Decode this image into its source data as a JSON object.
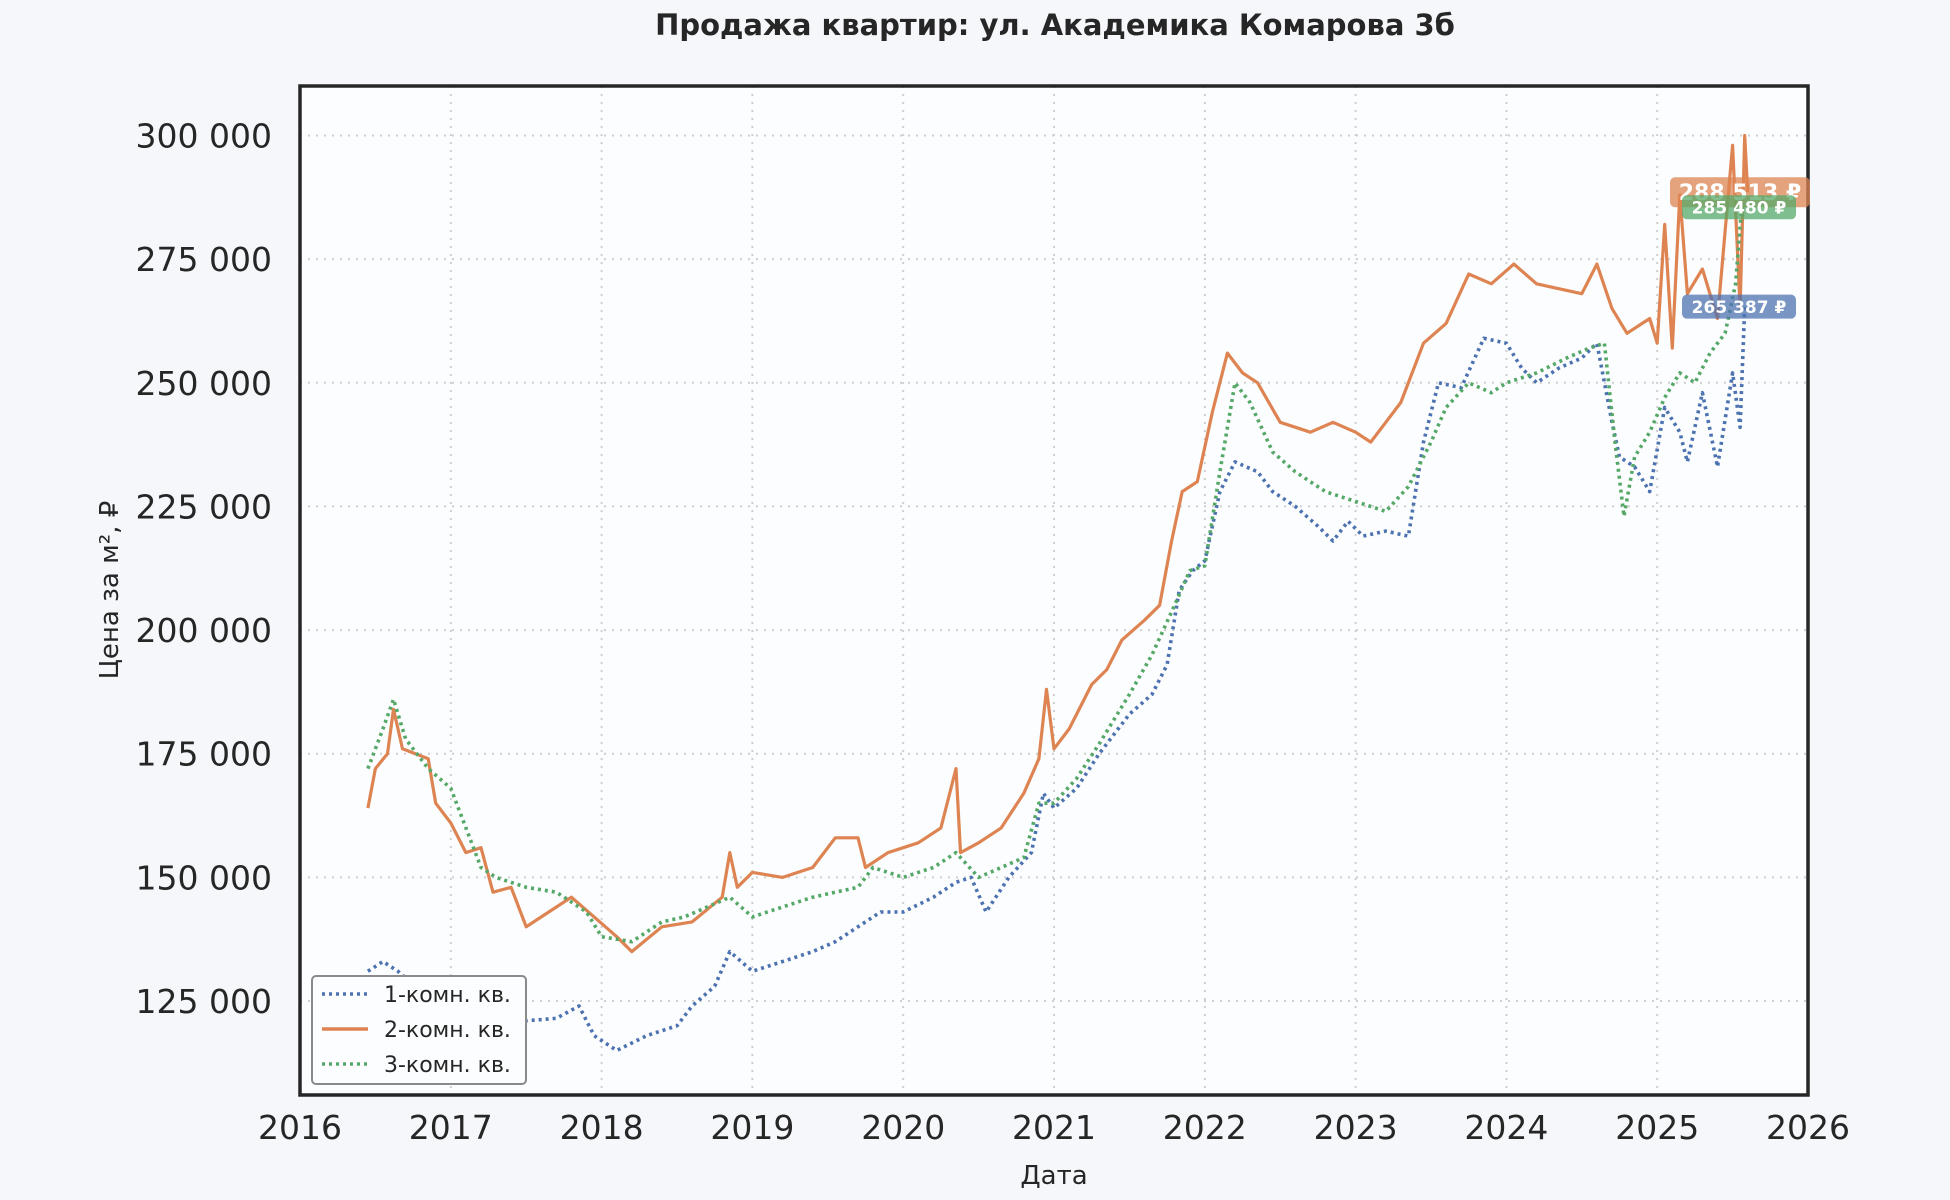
{
  "chart_data": {
    "type": "line",
    "title": "Продажа квартир: ул. Академика Комарова 3б",
    "xlabel": "Дата",
    "ylabel": "Цена за м², ₽",
    "xlim": [
      2016,
      2026
    ],
    "ylim": [
      106000,
      310000
    ],
    "x_ticks": [
      "2016",
      "2017",
      "2018",
      "2019",
      "2020",
      "2021",
      "2022",
      "2023",
      "2024",
      "2025",
      "2026"
    ],
    "y_ticks": [
      "125 000",
      "150 000",
      "175 000",
      "200 000",
      "225 000",
      "250 000",
      "275 000",
      "300 000"
    ],
    "grid": true,
    "legend_position": "lower-left",
    "series": [
      {
        "name": "1-комн. кв.",
        "color": "#4c72b0",
        "style": "dotted",
        "last_value_label": "265 387 ₽",
        "points": [
          [
            2016.45,
            131000
          ],
          [
            2016.55,
            133000
          ],
          [
            2016.65,
            131000
          ],
          [
            2016.8,
            127000
          ],
          [
            2017.0,
            124000
          ],
          [
            2017.3,
            122000
          ],
          [
            2017.5,
            121000
          ],
          [
            2017.7,
            121500
          ],
          [
            2017.85,
            124000
          ],
          [
            2017.95,
            118000
          ],
          [
            2018.1,
            115000
          ],
          [
            2018.3,
            118000
          ],
          [
            2018.5,
            120000
          ],
          [
            2018.6,
            124000
          ],
          [
            2018.75,
            128000
          ],
          [
            2018.85,
            135000
          ],
          [
            2019.0,
            131000
          ],
          [
            2019.2,
            133000
          ],
          [
            2019.4,
            135000
          ],
          [
            2019.55,
            137000
          ],
          [
            2019.7,
            140000
          ],
          [
            2019.85,
            143000
          ],
          [
            2020.0,
            143000
          ],
          [
            2020.2,
            146000
          ],
          [
            2020.35,
            149000
          ],
          [
            2020.45,
            150000
          ],
          [
            2020.55,
            143000
          ],
          [
            2020.7,
            150000
          ],
          [
            2020.85,
            155000
          ],
          [
            2020.93,
            167000
          ],
          [
            2021.0,
            164000
          ],
          [
            2021.15,
            168000
          ],
          [
            2021.3,
            175000
          ],
          [
            2021.5,
            183000
          ],
          [
            2021.65,
            187000
          ],
          [
            2021.75,
            193000
          ],
          [
            2021.83,
            208000
          ],
          [
            2021.92,
            212000
          ],
          [
            2022.0,
            214000
          ],
          [
            2022.1,
            228000
          ],
          [
            2022.2,
            234000
          ],
          [
            2022.35,
            232000
          ],
          [
            2022.45,
            228000
          ],
          [
            2022.6,
            225000
          ],
          [
            2022.75,
            221000
          ],
          [
            2022.85,
            218000
          ],
          [
            2022.95,
            222000
          ],
          [
            2023.05,
            219000
          ],
          [
            2023.2,
            220000
          ],
          [
            2023.35,
            219000
          ],
          [
            2023.45,
            238000
          ],
          [
            2023.55,
            250000
          ],
          [
            2023.7,
            249000
          ],
          [
            2023.85,
            259000
          ],
          [
            2024.0,
            258000
          ],
          [
            2024.1,
            253000
          ],
          [
            2024.2,
            250000
          ],
          [
            2024.35,
            253000
          ],
          [
            2024.5,
            255000
          ],
          [
            2024.6,
            258000
          ],
          [
            2024.7,
            242000
          ],
          [
            2024.75,
            235000
          ],
          [
            2024.85,
            233000
          ],
          [
            2024.95,
            228000
          ],
          [
            2025.05,
            245000
          ],
          [
            2025.15,
            240000
          ],
          [
            2025.2,
            234000
          ],
          [
            2025.3,
            248000
          ],
          [
            2025.4,
            233000
          ],
          [
            2025.5,
            252000
          ],
          [
            2025.55,
            241000
          ],
          [
            2025.58,
            265387
          ]
        ]
      },
      {
        "name": "2-комн. кв.",
        "color": "#dd8452",
        "style": "solid",
        "last_value_label": "288 513 ₽",
        "points": [
          [
            2016.45,
            164000
          ],
          [
            2016.5,
            172000
          ],
          [
            2016.58,
            175000
          ],
          [
            2016.62,
            184000
          ],
          [
            2016.68,
            176000
          ],
          [
            2016.85,
            174000
          ],
          [
            2016.9,
            165000
          ],
          [
            2017.0,
            161000
          ],
          [
            2017.1,
            155000
          ],
          [
            2017.2,
            156000
          ],
          [
            2017.28,
            147000
          ],
          [
            2017.4,
            148000
          ],
          [
            2017.5,
            140000
          ],
          [
            2017.6,
            142000
          ],
          [
            2017.8,
            146000
          ],
          [
            2017.95,
            142000
          ],
          [
            2018.1,
            138000
          ],
          [
            2018.2,
            135000
          ],
          [
            2018.4,
            140000
          ],
          [
            2018.6,
            141000
          ],
          [
            2018.8,
            146000
          ],
          [
            2018.85,
            155000
          ],
          [
            2018.9,
            148000
          ],
          [
            2019.0,
            151000
          ],
          [
            2019.2,
            150000
          ],
          [
            2019.4,
            152000
          ],
          [
            2019.55,
            158000
          ],
          [
            2019.7,
            158000
          ],
          [
            2019.75,
            152000
          ],
          [
            2019.9,
            155000
          ],
          [
            2020.1,
            157000
          ],
          [
            2020.25,
            160000
          ],
          [
            2020.35,
            172000
          ],
          [
            2020.38,
            155000
          ],
          [
            2020.5,
            157000
          ],
          [
            2020.65,
            160000
          ],
          [
            2020.8,
            167000
          ],
          [
            2020.9,
            174000
          ],
          [
            2020.95,
            188000
          ],
          [
            2021.0,
            176000
          ],
          [
            2021.1,
            180000
          ],
          [
            2021.25,
            189000
          ],
          [
            2021.35,
            192000
          ],
          [
            2021.45,
            198000
          ],
          [
            2021.6,
            202000
          ],
          [
            2021.7,
            205000
          ],
          [
            2021.78,
            218000
          ],
          [
            2021.85,
            228000
          ],
          [
            2021.95,
            230000
          ],
          [
            2022.05,
            244000
          ],
          [
            2022.15,
            256000
          ],
          [
            2022.25,
            252000
          ],
          [
            2022.35,
            250000
          ],
          [
            2022.5,
            242000
          ],
          [
            2022.7,
            240000
          ],
          [
            2022.85,
            242000
          ],
          [
            2023.0,
            240000
          ],
          [
            2023.1,
            238000
          ],
          [
            2023.2,
            242000
          ],
          [
            2023.3,
            246000
          ],
          [
            2023.45,
            258000
          ],
          [
            2023.6,
            262000
          ],
          [
            2023.75,
            272000
          ],
          [
            2023.9,
            270000
          ],
          [
            2024.05,
            274000
          ],
          [
            2024.2,
            270000
          ],
          [
            2024.35,
            269000
          ],
          [
            2024.5,
            268000
          ],
          [
            2024.6,
            274000
          ],
          [
            2024.7,
            265000
          ],
          [
            2024.8,
            260000
          ],
          [
            2024.95,
            263000
          ],
          [
            2025.0,
            258000
          ],
          [
            2025.05,
            282000
          ],
          [
            2025.1,
            257000
          ],
          [
            2025.15,
            288000
          ],
          [
            2025.2,
            268000
          ],
          [
            2025.3,
            273000
          ],
          [
            2025.4,
            263000
          ],
          [
            2025.5,
            298000
          ],
          [
            2025.55,
            265000
          ],
          [
            2025.58,
            300000
          ],
          [
            2025.6,
            288513
          ]
        ]
      },
      {
        "name": "3-комн. кв.",
        "color": "#55a868",
        "style": "dotted",
        "last_value_label": "285 480 ₽",
        "points": [
          [
            2016.45,
            172000
          ],
          [
            2016.55,
            180000
          ],
          [
            2016.62,
            186000
          ],
          [
            2016.7,
            178000
          ],
          [
            2016.85,
            172000
          ],
          [
            2017.0,
            168000
          ],
          [
            2017.1,
            160000
          ],
          [
            2017.2,
            152000
          ],
          [
            2017.3,
            150000
          ],
          [
            2017.5,
            148000
          ],
          [
            2017.7,
            147000
          ],
          [
            2017.9,
            143000
          ],
          [
            2018.0,
            138000
          ],
          [
            2018.2,
            137000
          ],
          [
            2018.4,
            141000
          ],
          [
            2018.55,
            142000
          ],
          [
            2018.7,
            144000
          ],
          [
            2018.85,
            146000
          ],
          [
            2019.0,
            142000
          ],
          [
            2019.2,
            144000
          ],
          [
            2019.4,
            146000
          ],
          [
            2019.55,
            147000
          ],
          [
            2019.7,
            148000
          ],
          [
            2019.8,
            152000
          ],
          [
            2020.0,
            150000
          ],
          [
            2020.2,
            152000
          ],
          [
            2020.35,
            155000
          ],
          [
            2020.5,
            150000
          ],
          [
            2020.65,
            152000
          ],
          [
            2020.8,
            154000
          ],
          [
            2020.9,
            165000
          ],
          [
            2021.0,
            165000
          ],
          [
            2021.15,
            170000
          ],
          [
            2021.3,
            177000
          ],
          [
            2021.5,
            187000
          ],
          [
            2021.65,
            195000
          ],
          [
            2021.8,
            205000
          ],
          [
            2021.9,
            212000
          ],
          [
            2022.0,
            213000
          ],
          [
            2022.1,
            232000
          ],
          [
            2022.2,
            250000
          ],
          [
            2022.3,
            246000
          ],
          [
            2022.45,
            236000
          ],
          [
            2022.6,
            232000
          ],
          [
            2022.8,
            228000
          ],
          [
            2023.0,
            226000
          ],
          [
            2023.2,
            224000
          ],
          [
            2023.35,
            229000
          ],
          [
            2023.5,
            238000
          ],
          [
            2023.6,
            245000
          ],
          [
            2023.75,
            250000
          ],
          [
            2023.9,
            248000
          ],
          [
            2024.0,
            250000
          ],
          [
            2024.2,
            252000
          ],
          [
            2024.4,
            255000
          ],
          [
            2024.55,
            257000
          ],
          [
            2024.65,
            258000
          ],
          [
            2024.72,
            238000
          ],
          [
            2024.78,
            223000
          ],
          [
            2024.85,
            235000
          ],
          [
            2024.95,
            240000
          ],
          [
            2025.05,
            247000
          ],
          [
            2025.15,
            252000
          ],
          [
            2025.25,
            250000
          ],
          [
            2025.35,
            256000
          ],
          [
            2025.45,
            260000
          ],
          [
            2025.52,
            270000
          ],
          [
            2025.56,
            285480
          ]
        ]
      }
    ]
  }
}
